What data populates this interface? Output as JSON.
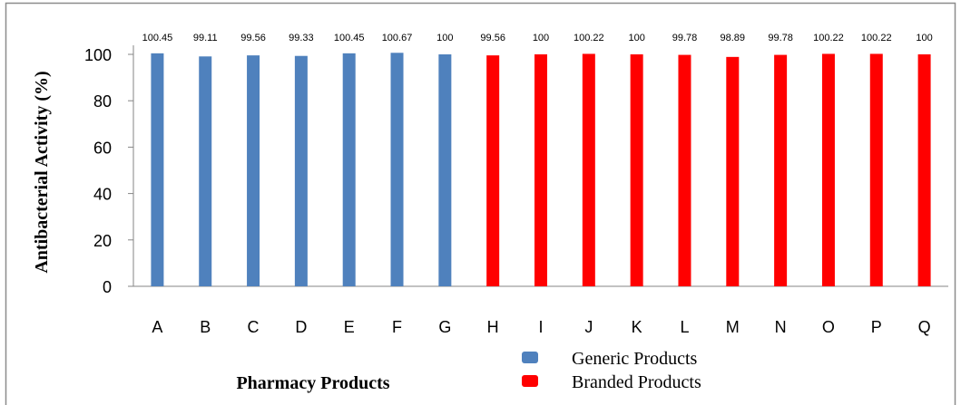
{
  "chart_data": {
    "type": "bar",
    "categories": [
      "A",
      "B",
      "C",
      "D",
      "E",
      "F",
      "G",
      "H",
      "I",
      "J",
      "K",
      "L",
      "M",
      "N",
      "O",
      "P",
      "Q"
    ],
    "values": [
      100.45,
      99.11,
      99.56,
      99.33,
      100.45,
      100.67,
      100,
      99.56,
      100,
      100.22,
      100,
      99.78,
      98.89,
      99.78,
      100.22,
      100.22,
      100
    ],
    "value_labels": [
      "100.45",
      "99.11",
      "99.56",
      "99.33",
      "100.45",
      "100.67",
      "100",
      "99.56",
      "100",
      "100.22",
      "100",
      "99.78",
      "98.89",
      "99.78",
      "100.22",
      "100.22",
      "100"
    ],
    "groups": [
      "generic",
      "generic",
      "generic",
      "generic",
      "generic",
      "generic",
      "generic",
      "branded",
      "branded",
      "branded",
      "branded",
      "branded",
      "branded",
      "branded",
      "branded",
      "branded",
      "branded"
    ],
    "xlabel": "Pharmacy Products",
    "ylabel": "Antibacterial Activity (%)",
    "ylim": [
      0,
      100
    ],
    "yticks": [
      "0",
      "20",
      "40",
      "60",
      "80",
      "100"
    ],
    "legend": {
      "position": "bottom",
      "entries": [
        {
          "key": "generic",
          "label": "Generic Products",
          "color": "#4f81bd"
        },
        {
          "key": "branded",
          "label": "Branded Products",
          "color": "#ff0000"
        }
      ]
    },
    "grid": false
  },
  "colors": {
    "border": "#8c8c8c",
    "axis": "#868686"
  }
}
